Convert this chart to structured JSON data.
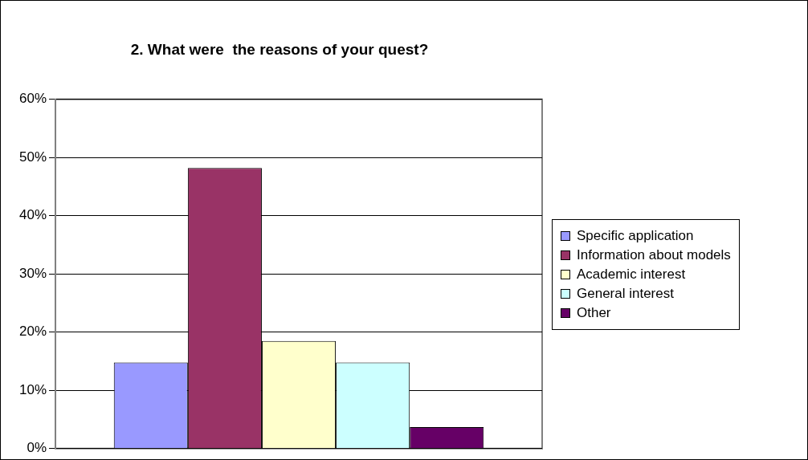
{
  "chart_data": {
    "type": "bar",
    "title": "2. What were  the reasons of your quest?",
    "categories": [
      null
    ],
    "series": [
      {
        "name": "Specific application",
        "color": "#9999ff",
        "values": [
          14.8
        ]
      },
      {
        "name": "Information about models",
        "color": "#993366",
        "values": [
          48.2
        ]
      },
      {
        "name": "Academic interest",
        "color": "#ffffcc",
        "values": [
          18.5
        ]
      },
      {
        "name": "General interest",
        "color": "#ccffff",
        "values": [
          14.8
        ]
      },
      {
        "name": "Other",
        "color": "#660066",
        "values": [
          3.7
        ]
      }
    ],
    "ylim": [
      0,
      60
    ],
    "yticks": [
      {
        "value": 0,
        "label": "0%"
      },
      {
        "value": 10,
        "label": "10%"
      },
      {
        "value": 20,
        "label": "20%"
      },
      {
        "value": 30,
        "label": "30%"
      },
      {
        "value": 40,
        "label": "40%"
      },
      {
        "value": 50,
        "label": "50%"
      },
      {
        "value": 60,
        "label": "60%"
      }
    ],
    "grid": "y",
    "legend": "right"
  }
}
